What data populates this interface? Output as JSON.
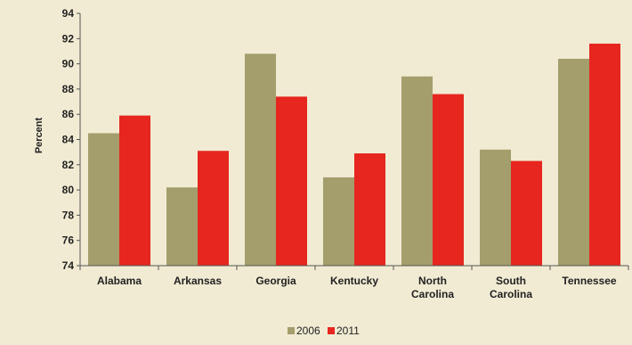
{
  "chart_data": {
    "type": "bar",
    "categories": [
      [
        "Alabama"
      ],
      [
        "Arkansas"
      ],
      [
        "Georgia"
      ],
      [
        "Kentucky"
      ],
      [
        "North",
        "Carolina"
      ],
      [
        "South",
        "Carolina"
      ],
      [
        "Tennessee"
      ]
    ],
    "series": [
      {
        "name": "2006",
        "color": "#a39e6c",
        "values": [
          84.5,
          80.2,
          90.8,
          81.0,
          89.0,
          83.2,
          90.4
        ]
      },
      {
        "name": "2011",
        "color": "#e6261f",
        "values": [
          85.9,
          83.1,
          87.4,
          82.9,
          87.6,
          82.3,
          91.6
        ]
      }
    ],
    "ylabel": "Percent",
    "ylim": [
      74,
      94
    ],
    "yticks": [
      74,
      76,
      78,
      80,
      82,
      84,
      86,
      88,
      90,
      92,
      94
    ],
    "legend": "bottom",
    "grid": false
  },
  "colors": {
    "background": "#f1ebd3",
    "axis": "#555555"
  }
}
